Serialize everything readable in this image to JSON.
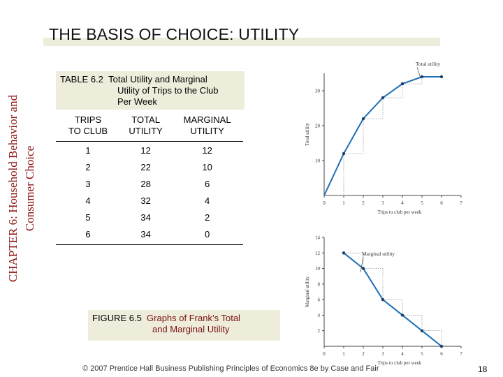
{
  "slide": {
    "title": "THE BASIS OF CHOICE: UTILITY",
    "side_label_line1": "CHAPTER 6:  Household Behavior and",
    "side_label_line2": "Consumer Choice",
    "footer": "© 2007 Prentice Hall Business Publishing   Principles of Economics 8e by Case and Fair",
    "page_number": "18"
  },
  "table": {
    "caption_label": "TABLE 6.2",
    "caption_line1": "Total Utility and Marginal",
    "caption_line2": "Utility of Trips to the Club",
    "caption_line3": "Per Week",
    "headers": [
      {
        "line1": "TRIPS",
        "line2": "TO CLUB"
      },
      {
        "line1": "TOTAL",
        "line2": "UTILITY"
      },
      {
        "line1": "MARGINAL",
        "line2": "UTILITY"
      }
    ],
    "rows": [
      [
        "1",
        "12",
        "12"
      ],
      [
        "2",
        "22",
        "10"
      ],
      [
        "3",
        "28",
        "6"
      ],
      [
        "4",
        "32",
        "4"
      ],
      [
        "5",
        "34",
        "2"
      ],
      [
        "6",
        "34",
        "0"
      ]
    ]
  },
  "figure": {
    "caption_label": "FIGURE 6.5",
    "caption_line1": "Graphs of Frank’s Total",
    "caption_line2": "and Marginal Utility"
  },
  "colors": {
    "accent_bg": "#eeeddc",
    "side_label": "#8a1010",
    "curve": "#1f6fb5",
    "caption_label": "#7a1010"
  },
  "chart_data": [
    {
      "type": "line",
      "title": "Total utility",
      "xlabel": "Trips to club per week",
      "ylabel": "Total utility",
      "x": [
        0,
        1,
        2,
        3,
        4,
        5,
        6
      ],
      "series": [
        {
          "name": "Total utility",
          "values": [
            0,
            12,
            22,
            28,
            32,
            34,
            34
          ]
        }
      ],
      "xlim": [
        0,
        7
      ],
      "ylim": [
        0,
        35
      ],
      "x_ticks": [
        "0",
        "1",
        "2",
        "3",
        "4",
        "5",
        "6",
        "7"
      ],
      "y_ticks": [
        "10",
        "20",
        "30"
      ]
    },
    {
      "type": "line",
      "title": "Marginal utility",
      "xlabel": "Trips to club per week",
      "ylabel": "Marginal utility",
      "x": [
        1,
        2,
        3,
        4,
        5,
        6
      ],
      "series": [
        {
          "name": "Marginal utility",
          "values": [
            12,
            10,
            6,
            4,
            2,
            0
          ]
        }
      ],
      "xlim": [
        0,
        7
      ],
      "ylim": [
        0,
        14
      ],
      "x_ticks": [
        "0",
        "1",
        "2",
        "3",
        "4",
        "5",
        "6",
        "7"
      ],
      "y_ticks": [
        "2",
        "4",
        "6",
        "8",
        "10",
        "12",
        "14"
      ]
    }
  ]
}
